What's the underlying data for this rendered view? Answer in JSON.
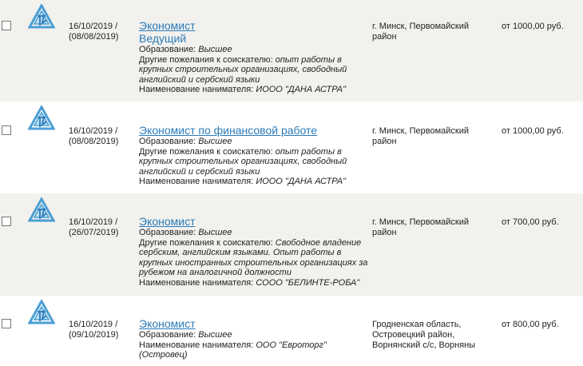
{
  "labels": {
    "education": "Образование: ",
    "wishes": "Другие пожелания к соискателю: ",
    "employer": "Наименование нанимателя: "
  },
  "accent": "#2a7ab8",
  "logo_icon": "triangle-logo-icon",
  "rows": [
    {
      "date": "16/10/2019 /",
      "date2": "(08/08/2019)",
      "title": "Экономист",
      "subtitle": "Ведущий",
      "education": "Высшее",
      "wishes": "опыт работы в крупных строительных организациях, свободный английский и сербский языки",
      "employer": "ИООО \"ДАНА АСТРА\"",
      "location": "г. Минск, Первомайский район",
      "salary": "от 1000,00 руб."
    },
    {
      "date": "16/10/2019 /",
      "date2": "(08/08/2019)",
      "title": "Экономист по финансовой работе",
      "education": "Высшее",
      "wishes": "опыт работы в крупных строительных организациях, свободный английский и сербский языки",
      "employer": "ИООО \"ДАНА АСТРА\"",
      "location": "г. Минск, Первомайский район",
      "salary": "от 1000,00 руб."
    },
    {
      "date": "16/10/2019 /",
      "date2": "(26/07/2019)",
      "title": "Экономист",
      "education": "Высшее",
      "wishes": "Свободное владение сербским, английским языками. Опыт работы в крупных иностранных строительных организациях за рубежом на аналогичной должности",
      "employer": "СООО \"БЕЛИНТЕ-РОБА\"",
      "location": "г. Минск, Первомайский район",
      "salary": "от 700,00 руб."
    },
    {
      "date": "16/10/2019 /",
      "date2": "(09/10/2019)",
      "title": "Экономист",
      "education": "Высшее",
      "employer": "ООО \"Евроторг\" (Островец)",
      "location": "Гродненская область, Островецкий район, Ворнянский с/с, Ворняны",
      "salary": "от 800,00 руб."
    }
  ]
}
